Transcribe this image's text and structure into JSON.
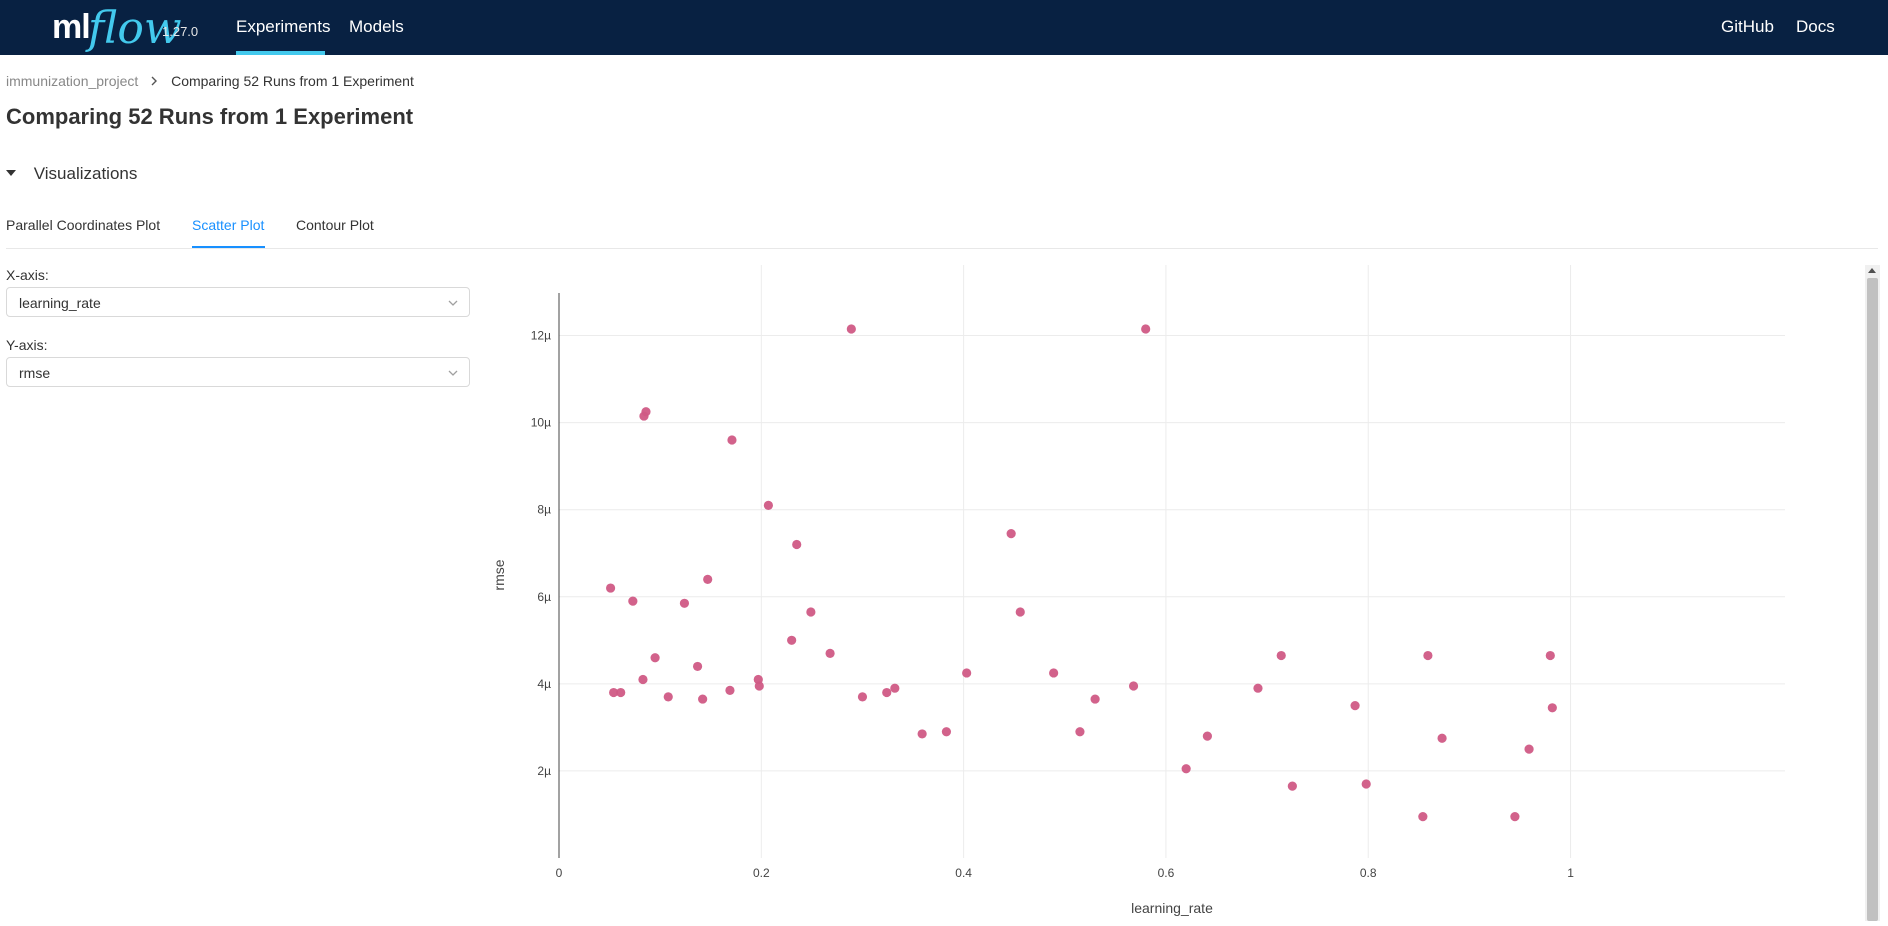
{
  "header": {
    "logo_ml": "ml",
    "logo_flow": "flow",
    "version": "1.27.0",
    "nav": [
      {
        "label": "Experiments",
        "active": true
      },
      {
        "label": "Models",
        "active": false
      }
    ],
    "right_links": [
      "GitHub",
      "Docs"
    ],
    "background_color": "#082142",
    "accent_color": "#43c9ed"
  },
  "breadcrumb": {
    "parent": "immunization_project",
    "current": "Comparing 52 Runs from 1 Experiment",
    "separator_icon": "chevron-right-icon"
  },
  "page_title": "Comparing 52 Runs from 1 Experiment",
  "visualizations": {
    "label": "Visualizations",
    "expanded": true,
    "tabs": [
      {
        "label": "Parallel Coordinates Plot",
        "active": false
      },
      {
        "label": "Scatter Plot",
        "active": true
      },
      {
        "label": "Contour Plot",
        "active": false
      }
    ]
  },
  "axis_controls": {
    "x_label": "X-axis:",
    "x_value": "learning_rate",
    "y_label": "Y-axis:",
    "y_value": "rmse"
  },
  "chart_data": {
    "type": "scatter",
    "xlabel": "learning_rate",
    "ylabel": "rmse",
    "xlim": [
      0,
      1.04
    ],
    "ylim": [
      0,
      13
    ],
    "x_ticks": [
      0,
      0.2,
      0.4,
      0.6,
      0.8,
      1
    ],
    "x_tick_labels": [
      "0",
      "0.2",
      "0.4",
      "0.6",
      "0.8",
      "1"
    ],
    "y_ticks": [
      2,
      4,
      6,
      8,
      10,
      12
    ],
    "y_tick_labels": [
      "2µ",
      "4µ",
      "6µ",
      "8µ",
      "10µ",
      "12µ"
    ],
    "y_unit_multiplier": "µ",
    "grid": true,
    "point_color": "#d05a85",
    "points": [
      {
        "x": 0.051,
        "y": 6.2
      },
      {
        "x": 0.054,
        "y": 3.8
      },
      {
        "x": 0.061,
        "y": 3.8
      },
      {
        "x": 0.073,
        "y": 5.9
      },
      {
        "x": 0.083,
        "y": 4.1
      },
      {
        "x": 0.084,
        "y": 10.15
      },
      {
        "x": 0.086,
        "y": 10.25
      },
      {
        "x": 0.095,
        "y": 4.6
      },
      {
        "x": 0.108,
        "y": 3.7
      },
      {
        "x": 0.124,
        "y": 5.85
      },
      {
        "x": 0.137,
        "y": 4.4
      },
      {
        "x": 0.142,
        "y": 3.65
      },
      {
        "x": 0.147,
        "y": 6.4
      },
      {
        "x": 0.169,
        "y": 3.85
      },
      {
        "x": 0.171,
        "y": 9.6
      },
      {
        "x": 0.197,
        "y": 4.1
      },
      {
        "x": 0.198,
        "y": 3.95
      },
      {
        "x": 0.207,
        "y": 8.1
      },
      {
        "x": 0.23,
        "y": 5.0
      },
      {
        "x": 0.235,
        "y": 7.2
      },
      {
        "x": 0.249,
        "y": 5.65
      },
      {
        "x": 0.268,
        "y": 4.7
      },
      {
        "x": 0.289,
        "y": 12.15
      },
      {
        "x": 0.3,
        "y": 3.7
      },
      {
        "x": 0.324,
        "y": 3.8
      },
      {
        "x": 0.332,
        "y": 3.9
      },
      {
        "x": 0.359,
        "y": 2.85
      },
      {
        "x": 0.383,
        "y": 2.9
      },
      {
        "x": 0.403,
        "y": 4.25
      },
      {
        "x": 0.447,
        "y": 7.45
      },
      {
        "x": 0.456,
        "y": 5.65
      },
      {
        "x": 0.489,
        "y": 4.25
      },
      {
        "x": 0.515,
        "y": 2.9
      },
      {
        "x": 0.53,
        "y": 3.65
      },
      {
        "x": 0.568,
        "y": 3.95
      },
      {
        "x": 0.58,
        "y": 12.15
      },
      {
        "x": 0.62,
        "y": 2.05
      },
      {
        "x": 0.641,
        "y": 2.8
      },
      {
        "x": 0.691,
        "y": 3.9
      },
      {
        "x": 0.714,
        "y": 4.65
      },
      {
        "x": 0.725,
        "y": 1.65
      },
      {
        "x": 0.787,
        "y": 3.5
      },
      {
        "x": 0.798,
        "y": 1.7
      },
      {
        "x": 0.854,
        "y": 0.95
      },
      {
        "x": 0.859,
        "y": 4.65
      },
      {
        "x": 0.873,
        "y": 2.75
      },
      {
        "x": 0.945,
        "y": 0.95
      },
      {
        "x": 0.959,
        "y": 2.5
      },
      {
        "x": 0.98,
        "y": 4.65
      },
      {
        "x": 0.982,
        "y": 3.45
      }
    ]
  }
}
